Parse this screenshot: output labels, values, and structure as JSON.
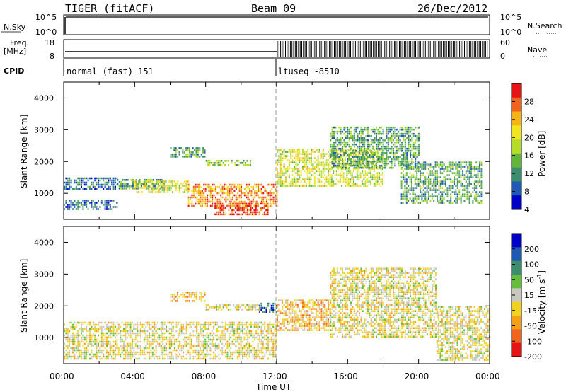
{
  "header": {
    "station": "TIGER (fitACF)",
    "beam": "Beam 09",
    "date": "26/Dec/2012"
  },
  "status": {
    "nsky_label": "N.Sky",
    "nsky_ticks": [
      "10^5",
      "10^0"
    ],
    "nsearch_label": "N.Search",
    "nsearch_ticks": [
      "10^5",
      "10^0"
    ],
    "freq_label_line1": "Freq.",
    "freq_label_line2": "[MHz]",
    "freq_ticks": [
      "18",
      "8"
    ],
    "nave_label": "Nave",
    "nave_ticks": [
      "60",
      "0"
    ],
    "cpid_label": "CPID",
    "cpid_first": "normal (fast) 151",
    "cpid_second": "ltuseq -8510",
    "mode_change_hours": 12.0
  },
  "axes": {
    "xlabel": "Time UT",
    "x_ticks": [
      "00:00",
      "04:00",
      "08:00",
      "12:00",
      "16:00",
      "20:00",
      "00:00"
    ],
    "ylabel": "Slant Range [km]",
    "y_ticks": [
      "4000",
      "3000",
      "2000",
      "1000"
    ]
  },
  "colorbars": {
    "power": {
      "label": "Power [dB]",
      "ticks": [
        "28",
        "24",
        "20",
        "16",
        "12",
        "8",
        "4"
      ]
    },
    "velocity": {
      "label_main": "Velocity [m s",
      "label_sup": "-1",
      "label_end": "]",
      "ticks": [
        "200",
        "100",
        "50",
        "15",
        "-15",
        "-50",
        "-100",
        "-200"
      ]
    }
  },
  "chart_data": [
    {
      "type": "heatmap",
      "name": "power",
      "xlabel": "Time UT",
      "ylabel": "Slant Range [km]",
      "xlim": [
        0,
        24
      ],
      "ylim": [
        180,
        4500
      ],
      "clim": [
        0,
        30
      ],
      "colors": [
        "#0000c8",
        "#1e5ab4",
        "#3c8c6e",
        "#64b43c",
        "#b4dc28",
        "#f0e61e",
        "#f5b414",
        "#f0641e",
        "#e61414"
      ],
      "regions": [
        {
          "t0": 0.0,
          "t1": 3.0,
          "r0": 1100,
          "r1": 1500,
          "value": 9
        },
        {
          "t0": 0.0,
          "t1": 3.0,
          "r0": 500,
          "r1": 800,
          "value": 7
        },
        {
          "t0": 3.0,
          "t1": 5.5,
          "r0": 1150,
          "r1": 1450,
          "value": 12
        },
        {
          "t0": 4.0,
          "t1": 7.0,
          "r0": 1000,
          "r1": 1400,
          "value": 18
        },
        {
          "t0": 7.0,
          "t1": 12.0,
          "r0": 600,
          "r1": 1300,
          "value": 24
        },
        {
          "t0": 8.5,
          "t1": 11.5,
          "r0": 300,
          "r1": 700,
          "value": 28
        },
        {
          "t0": 6.0,
          "t1": 8.0,
          "r0": 2150,
          "r1": 2450,
          "value": 10
        },
        {
          "t0": 8.0,
          "t1": 10.5,
          "r0": 1850,
          "r1": 2050,
          "value": 14
        },
        {
          "t0": 12.0,
          "t1": 18.0,
          "r0": 1200,
          "r1": 2400,
          "value": 18
        },
        {
          "t0": 15.0,
          "t1": 20.0,
          "r0": 1800,
          "r1": 3100,
          "value": 10
        },
        {
          "t0": 19.0,
          "t1": 23.5,
          "r0": 700,
          "r1": 2000,
          "value": 12
        }
      ]
    },
    {
      "type": "heatmap",
      "name": "velocity",
      "xlabel": "Time UT",
      "ylabel": "Slant Range [km]",
      "xlim": [
        0,
        24
      ],
      "ylim": [
        180,
        4500
      ],
      "clim": [
        -250,
        250
      ],
      "colors": [
        "#e61414",
        "#f0641e",
        "#f5a014",
        "#f0d21e",
        "#c8c8c0",
        "#64be3c",
        "#3c8c6e",
        "#1e5ab4",
        "#0000c8"
      ],
      "regions": [
        {
          "t0": 0.0,
          "t1": 12.0,
          "r0": 300,
          "r1": 1500,
          "value": 0
        },
        {
          "t0": 6.0,
          "t1": 8.0,
          "r0": 2150,
          "r1": 2450,
          "value": -40
        },
        {
          "t0": 8.0,
          "t1": 11.0,
          "r0": 1850,
          "r1": 2050,
          "value": 20
        },
        {
          "t0": 11.0,
          "t1": 12.0,
          "r0": 1800,
          "r1": 2100,
          "value": 150
        },
        {
          "t0": 12.0,
          "t1": 15.0,
          "r0": 1200,
          "r1": 2200,
          "value": -80
        },
        {
          "t0": 15.0,
          "t1": 21.0,
          "r0": 1000,
          "r1": 3200,
          "value": 0
        },
        {
          "t0": 21.0,
          "t1": 24.0,
          "r0": 300,
          "r1": 2000,
          "value": -5
        }
      ]
    }
  ]
}
